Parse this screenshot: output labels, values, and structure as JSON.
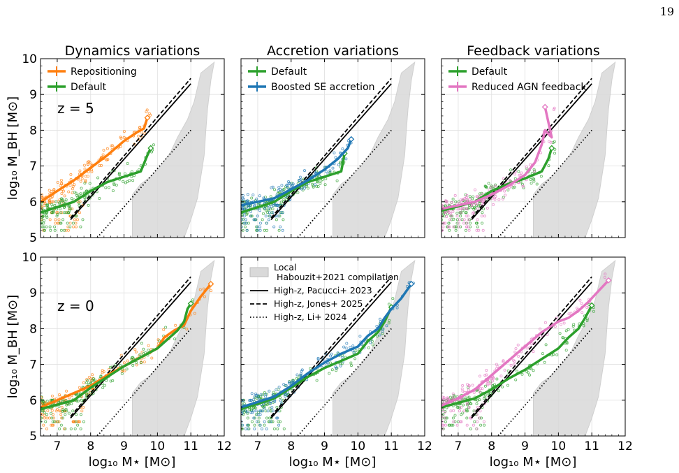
{
  "page_number": "19",
  "colors": {
    "orange": "#ff7f0e",
    "green": "#2ca02c",
    "blue": "#1f77b4",
    "pink": "#e377c2",
    "band": "#d9d9d9"
  },
  "axis_labels": {
    "y": "log₁₀ M_BH [M⊙]",
    "x": "log₁₀ M⋆ [M⊙]"
  },
  "ticks": {
    "x": [
      "7",
      "8",
      "9",
      "10",
      "11",
      "12"
    ],
    "y": [
      "5",
      "6",
      "7",
      "8",
      "9",
      "10"
    ]
  },
  "redshift_labels": {
    "top": "z = 5",
    "bottom": "z = 0"
  },
  "reference_legend": {
    "local": "Local",
    "local_sub": "Habouzit+2021 compilation",
    "pacucci": "High-z, Pacucci+ 2023",
    "jones": "High-z, Jones+ 2025",
    "li": "High-z, Li+ 2024"
  },
  "chart_data": [
    {
      "type": "scatter",
      "title": "Dynamics variations",
      "redshift": "z = 5",
      "xlabel": "",
      "ylabel": "log10 M_BH [M_sun]",
      "xlim": [
        6.5,
        12
      ],
      "ylim": [
        5,
        10
      ],
      "grid": true,
      "legend": "top-left",
      "series": [
        {
          "name": "Repositioning",
          "color": "#ff7f0e",
          "median_x": [
            6.5,
            7.0,
            7.5,
            8.0,
            8.5,
            9.0,
            9.4,
            9.6,
            9.7
          ],
          "median_y": [
            6.0,
            6.3,
            6.6,
            6.95,
            7.3,
            7.7,
            7.95,
            8.05,
            8.35
          ]
        },
        {
          "name": "Default",
          "color": "#2ca02c",
          "median_x": [
            6.5,
            7.5,
            8.0,
            8.5,
            9.0,
            9.5,
            9.7,
            9.8
          ],
          "median_y": [
            5.7,
            6.0,
            6.3,
            6.55,
            6.7,
            6.85,
            7.3,
            7.5
          ]
        }
      ]
    },
    {
      "type": "scatter",
      "title": "Accretion variations",
      "redshift": "z = 5",
      "xlim": [
        6.5,
        12
      ],
      "ylim": [
        5,
        10
      ],
      "grid": true,
      "legend": "top-left",
      "series": [
        {
          "name": "Default",
          "color": "#2ca02c",
          "median_x": [
            6.5,
            7.5,
            8.0,
            8.5,
            9.0,
            9.5,
            9.6
          ],
          "median_y": [
            5.7,
            6.0,
            6.3,
            6.55,
            6.7,
            6.85,
            7.35
          ]
        },
        {
          "name": "Boosted SE accretion",
          "color": "#1f77b4",
          "median_x": [
            6.5,
            7.0,
            7.5,
            8.0,
            8.5,
            9.0,
            9.4,
            9.7,
            9.8
          ],
          "median_y": [
            5.9,
            6.0,
            6.1,
            6.35,
            6.6,
            6.9,
            7.2,
            7.5,
            7.75
          ]
        }
      ]
    },
    {
      "type": "scatter",
      "title": "Feedback variations",
      "redshift": "z = 5",
      "xlim": [
        6.5,
        12
      ],
      "ylim": [
        5,
        10
      ],
      "grid": true,
      "legend": "top-left",
      "series": [
        {
          "name": "Default",
          "color": "#2ca02c",
          "median_x": [
            6.5,
            7.5,
            8.0,
            8.5,
            9.0,
            9.5,
            9.7,
            9.8
          ],
          "median_y": [
            5.75,
            6.0,
            6.3,
            6.5,
            6.65,
            6.85,
            7.2,
            7.5
          ]
        },
        {
          "name": "Reduced AGN feedback",
          "color": "#e377c2",
          "median_x": [
            6.5,
            7.5,
            8.0,
            8.5,
            9.0,
            9.3,
            9.5,
            9.6,
            9.8,
            9.6
          ],
          "median_y": [
            5.8,
            6.0,
            6.2,
            6.45,
            6.75,
            7.1,
            7.6,
            8.0,
            7.8,
            8.65
          ]
        }
      ]
    },
    {
      "type": "scatter",
      "title": "",
      "redshift": "z = 0",
      "xlabel": "log10 M_star [M_sun]",
      "ylabel": "log10 M_BH [M_sun]",
      "xlim": [
        6.5,
        12
      ],
      "ylim": [
        5,
        10
      ],
      "grid": true,
      "series": [
        {
          "name": "Repositioning",
          "color": "#ff7f0e",
          "median_x": [
            6.5,
            7.0,
            7.5,
            8.0,
            8.5,
            9.0,
            9.5,
            10.0,
            10.2,
            10.5,
            10.8,
            11.0,
            11.3,
            11.6
          ],
          "median_y": [
            5.8,
            6.0,
            6.2,
            6.4,
            6.7,
            6.95,
            7.2,
            7.45,
            7.75,
            7.95,
            8.1,
            8.5,
            8.9,
            9.25
          ]
        },
        {
          "name": "Default",
          "color": "#2ca02c",
          "median_x": [
            6.5,
            7.5,
            8.0,
            8.5,
            9.0,
            9.5,
            10.0,
            10.3,
            10.6,
            10.8,
            10.9,
            11.0
          ],
          "median_y": [
            5.75,
            6.0,
            6.35,
            6.65,
            6.95,
            7.2,
            7.45,
            7.7,
            7.95,
            8.2,
            8.55,
            8.7
          ]
        }
      ]
    },
    {
      "type": "scatter",
      "title": "",
      "redshift": "z = 0",
      "xlabel": "log10 M_star [M_sun]",
      "xlim": [
        6.5,
        12
      ],
      "ylim": [
        5,
        10
      ],
      "grid": true,
      "series": [
        {
          "name": "Default",
          "color": "#2ca02c",
          "median_x": [
            6.5,
            7.5,
            8.0,
            8.5,
            9.0,
            9.5,
            10.0,
            10.3,
            10.6,
            10.8,
            11.0
          ],
          "median_y": [
            5.75,
            6.05,
            6.35,
            6.65,
            6.9,
            7.1,
            7.3,
            7.65,
            7.9,
            8.2,
            8.6
          ]
        },
        {
          "name": "Boosted SE accretion",
          "color": "#1f77b4",
          "median_x": [
            6.5,
            7.5,
            8.0,
            8.5,
            9.0,
            9.5,
            10.0,
            10.3,
            10.6,
            10.8,
            11.0,
            11.3,
            11.6
          ],
          "median_y": [
            5.8,
            6.1,
            6.4,
            6.75,
            7.05,
            7.3,
            7.5,
            7.8,
            8.0,
            8.3,
            8.55,
            8.85,
            9.25
          ]
        }
      ]
    },
    {
      "type": "scatter",
      "title": "",
      "redshift": "z = 0",
      "xlabel": "log10 M_star [M_sun]",
      "xlim": [
        6.5,
        12
      ],
      "ylim": [
        5,
        10
      ],
      "grid": true,
      "series": [
        {
          "name": "Default",
          "color": "#2ca02c",
          "median_x": [
            6.5,
            7.5,
            8.0,
            8.5,
            9.0,
            9.5,
            10.0,
            10.3,
            10.6,
            10.8,
            11.0
          ],
          "median_y": [
            5.8,
            6.05,
            6.3,
            6.6,
            6.85,
            7.15,
            7.45,
            7.75,
            8.0,
            8.3,
            8.65
          ]
        },
        {
          "name": "Reduced AGN feedback",
          "color": "#e377c2",
          "median_x": [
            6.5,
            7.0,
            7.5,
            8.0,
            8.5,
            9.0,
            9.5,
            10.0,
            10.3,
            10.6,
            10.9,
            11.2,
            11.5
          ],
          "median_y": [
            5.85,
            6.05,
            6.3,
            6.7,
            7.1,
            7.5,
            7.9,
            8.2,
            8.3,
            8.5,
            8.75,
            9.05,
            9.35
          ]
        }
      ]
    }
  ],
  "reference_relations": {
    "pacucci_2023": {
      "x": [
        7.4,
        11.0
      ],
      "y": [
        5.5,
        9.3
      ],
      "style": "solid"
    },
    "jones_2025": {
      "x": [
        7.4,
        11.0
      ],
      "y": [
        5.55,
        9.45
      ],
      "style": "dashed"
    },
    "li_2024": {
      "x": [
        8.2,
        11.0
      ],
      "y": [
        5.0,
        8.0
      ],
      "style": "dotted"
    },
    "local_band": {
      "left_x": [
        9.25,
        9.25,
        9.5,
        9.8,
        10.1,
        10.4,
        10.6,
        10.9,
        11.1,
        11.3
      ],
      "left_y": [
        5.0,
        6.2,
        6.5,
        6.7,
        7.0,
        7.4,
        7.8,
        8.3,
        8.8,
        9.6
      ],
      "right_x": [
        11.7,
        11.6,
        11.5,
        11.45,
        11.4,
        11.3,
        11.2,
        11.0,
        10.8
      ],
      "right_y": [
        9.9,
        9.4,
        8.6,
        8.0,
        7.3,
        6.7,
        6.1,
        5.5,
        5.0
      ]
    }
  }
}
